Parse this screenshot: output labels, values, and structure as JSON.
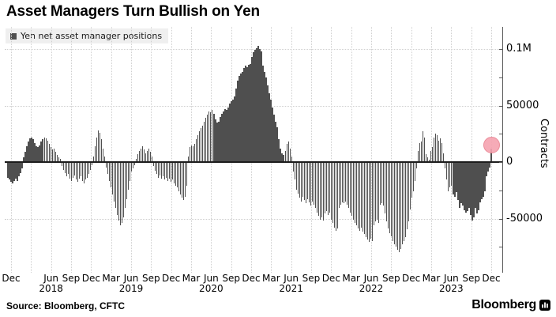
{
  "title": "Asset Managers Turn Bullish on Yen",
  "legend": {
    "label": "Yen net asset manager positions",
    "swatch_color": "#4f4f4f"
  },
  "source": "Source: Bloomberg, CFTC",
  "branding": {
    "wordmark": "Bloomberg"
  },
  "colors": {
    "bar": "#4f4f4f",
    "grid": "#cfcfcf",
    "zero_line": "#1c1c1c",
    "axis": "#5a5a5a",
    "legend_bg": "#efefef",
    "highlight_fill": "#f6a3b0",
    "highlight_stroke": "#e8808f"
  },
  "y_axis": {
    "title": "Contracts",
    "ticks": [
      {
        "value": 100000,
        "label": "0.1M"
      },
      {
        "value": 50000,
        "label": "50000"
      },
      {
        "value": 0,
        "label": "0"
      },
      {
        "value": -50000,
        "label": "-50000"
      }
    ],
    "minor_ticks": [
      75000,
      25000,
      -25000,
      -75000
    ],
    "range": [
      -95000,
      120000
    ]
  },
  "x_axis": {
    "quarters": [
      {
        "label": "Dec",
        "q": 0
      },
      {
        "label": "Jun",
        "q": 2
      },
      {
        "label": "Sep",
        "q": 3
      },
      {
        "label": "Dec",
        "q": 4
      },
      {
        "label": "Mar",
        "q": 5
      },
      {
        "label": "Jun",
        "q": 6
      },
      {
        "label": "Sep",
        "q": 7
      },
      {
        "label": "Dec",
        "q": 8
      },
      {
        "label": "Mar",
        "q": 9
      },
      {
        "label": "Jun",
        "q": 10
      },
      {
        "label": "Sep",
        "q": 11
      },
      {
        "label": "Dec",
        "q": 12
      },
      {
        "label": "Mar",
        "q": 13
      },
      {
        "label": "Jun",
        "q": 14
      },
      {
        "label": "Sep",
        "q": 15
      },
      {
        "label": "Dec",
        "q": 16
      },
      {
        "label": "Mar",
        "q": 17
      },
      {
        "label": "Jun",
        "q": 18
      },
      {
        "label": "Sep",
        "q": 19
      },
      {
        "label": "Dec",
        "q": 20
      },
      {
        "label": "Mar",
        "q": 21
      },
      {
        "label": "Jun",
        "q": 22
      },
      {
        "label": "Sep",
        "q": 23
      },
      {
        "label": "Dec",
        "q": 24
      }
    ],
    "years": [
      {
        "label": "2018",
        "q": 2
      },
      {
        "label": "2019",
        "q": 6
      },
      {
        "label": "2020",
        "q": 10
      },
      {
        "label": "2021",
        "q": 14
      },
      {
        "label": "2022",
        "q": 18
      },
      {
        "label": "2023",
        "q": 22
      }
    ]
  },
  "chart_data": {
    "type": "bar",
    "series_name": "Yen net asset manager positions",
    "unit": "contracts",
    "frequency": "weekly",
    "start": "2017-11",
    "end": "2023-12",
    "title": "Asset Managers Turn Bullish on Yen",
    "ylabel": "Contracts",
    "ylim": [
      -95000,
      120000
    ],
    "grid": "dotted",
    "legend_position": "top-left",
    "values": [
      -13000,
      -15000,
      -17000,
      -18000,
      -16000,
      -14000,
      -16000,
      -12000,
      -9000,
      -5000,
      4000,
      9000,
      14000,
      18000,
      21000,
      22000,
      20000,
      17000,
      14000,
      13000,
      15000,
      18000,
      20000,
      22000,
      21000,
      19000,
      16000,
      13000,
      11000,
      12000,
      9000,
      6000,
      4000,
      3000,
      -3000,
      -6000,
      -9000,
      -12000,
      -10000,
      -14000,
      -16000,
      -13000,
      -11000,
      -15000,
      -17000,
      -14000,
      -12000,
      -16000,
      -18000,
      -15000,
      -13000,
      -10000,
      -6000,
      -2000,
      5000,
      14000,
      22000,
      28000,
      26000,
      20000,
      12000,
      5000,
      -4000,
      -10000,
      -16000,
      -22000,
      -28000,
      -34000,
      -40000,
      -46000,
      -51000,
      -55000,
      -53000,
      -48000,
      -40000,
      -32000,
      -24000,
      -16000,
      -8000,
      -5000,
      -2000,
      3000,
      7000,
      10000,
      12000,
      14000,
      11000,
      8000,
      10000,
      12000,
      9000,
      5000,
      -3000,
      -7000,
      -10000,
      -13000,
      -11000,
      -14000,
      -12000,
      -15000,
      -13000,
      -16000,
      -14000,
      -17000,
      -15000,
      -18000,
      -20000,
      -22000,
      -25000,
      -28000,
      -31000,
      -33000,
      -30000,
      -20000,
      5000,
      13000,
      15000,
      14000,
      16000,
      20000,
      24000,
      27000,
      30000,
      32000,
      36000,
      39000,
      42000,
      45000,
      44000,
      46000,
      43000,
      38000,
      35000,
      36000,
      40000,
      43000,
      45000,
      47000,
      46000,
      48000,
      52000,
      54000,
      55000,
      58000,
      65000,
      72000,
      76000,
      78000,
      80000,
      83000,
      85000,
      84000,
      86000,
      87000,
      93000,
      97000,
      99000,
      101000,
      103000,
      100000,
      98000,
      85000,
      80000,
      75000,
      68000,
      61000,
      55000,
      48000,
      42000,
      36000,
      31000,
      20000,
      12000,
      8000,
      6000,
      10000,
      16000,
      18000,
      12000,
      5000,
      -8000,
      -15000,
      -24000,
      -27000,
      -31000,
      -34000,
      -30000,
      -33000,
      -36000,
      -32000,
      -35000,
      -38000,
      -34000,
      -37000,
      -40000,
      -44000,
      -47000,
      -50000,
      -48000,
      -51000,
      -45000,
      -43000,
      -46000,
      -44000,
      -50000,
      -53000,
      -57000,
      -60000,
      -58000,
      -40000,
      -37000,
      -35000,
      -36000,
      -34000,
      -37000,
      -40000,
      -44000,
      -47000,
      -50000,
      -53000,
      -55000,
      -58000,
      -60000,
      -57000,
      -61000,
      -63000,
      -66000,
      -68000,
      -70000,
      -67000,
      -69000,
      -55000,
      -52000,
      -50000,
      -53000,
      -37000,
      -36000,
      -38000,
      -45000,
      -52000,
      -58000,
      -62000,
      -65000,
      -69000,
      -72000,
      -74000,
      -77000,
      -79000,
      -76000,
      -72000,
      -69000,
      -66000,
      -59000,
      -52000,
      -41000,
      -31000,
      -25000,
      -16000,
      -5000,
      10000,
      17000,
      18000,
      27000,
      22000,
      7000,
      4000,
      2000,
      10000,
      13000,
      22000,
      25000,
      24000,
      19000,
      21000,
      17000,
      8000,
      -5000,
      -15000,
      -25000,
      -22000,
      -20000,
      -28000,
      -30000,
      -26000,
      -33000,
      -40000,
      -36000,
      -38000,
      -42000,
      -44000,
      -43000,
      -40000,
      -46000,
      -51000,
      -48000,
      -40000,
      -45000,
      -42000,
      -35000,
      -32000,
      -30000,
      -25000,
      -12000,
      -8000,
      -4000,
      12000
    ],
    "highlight": {
      "index": 305,
      "value": 12000,
      "marker": "circle"
    }
  }
}
